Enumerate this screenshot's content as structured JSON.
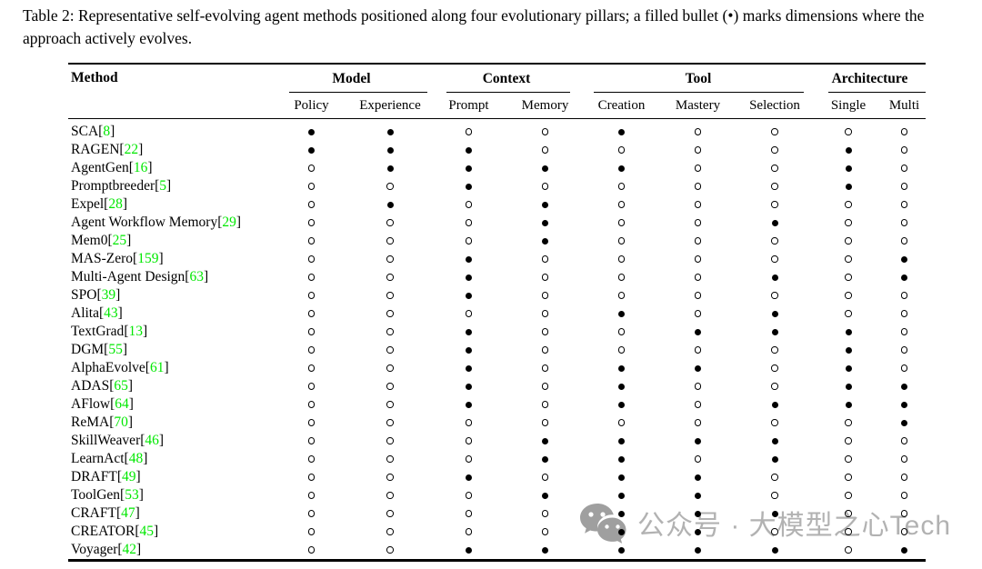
{
  "caption": "Table 2: Representative self-evolving agent methods positioned along four evolutionary pillars; a filled bullet (•) marks dimensions where the approach actively evolves.",
  "colors": {
    "citation_green": "#00e800",
    "text": "#000000",
    "background": "#ffffff",
    "watermark_gray": "#b2b2b2"
  },
  "table": {
    "method_header": "Method",
    "groups": [
      {
        "label": "Model",
        "subcolumns": [
          "Policy",
          "Experience"
        ]
      },
      {
        "label": "Context",
        "subcolumns": [
          "Prompt",
          "Memory"
        ]
      },
      {
        "label": "Tool",
        "subcolumns": [
          "Creation",
          "Mastery",
          "Selection"
        ]
      },
      {
        "label": "Architecture",
        "subcolumns": [
          "Single",
          "Multi"
        ]
      }
    ],
    "bullet_legend": {
      "filled": "●",
      "open": "○"
    },
    "rows": [
      {
        "method": "SCA",
        "cite": "8",
        "values": [
          1,
          1,
          0,
          0,
          1,
          0,
          0,
          0,
          0
        ]
      },
      {
        "method": "RAGEN",
        "cite": "22",
        "values": [
          1,
          1,
          1,
          0,
          0,
          0,
          0,
          1,
          0
        ]
      },
      {
        "method": "AgentGen",
        "cite": "16",
        "values": [
          0,
          1,
          1,
          1,
          1,
          0,
          0,
          1,
          0
        ]
      },
      {
        "method": "Promptbreeder",
        "cite": "5",
        "values": [
          0,
          0,
          1,
          0,
          0,
          0,
          0,
          1,
          0
        ]
      },
      {
        "method": "Expel",
        "cite": "28",
        "values": [
          0,
          1,
          0,
          1,
          0,
          0,
          0,
          0,
          0
        ]
      },
      {
        "method": "Agent Workflow Memory",
        "cite": "29",
        "values": [
          0,
          0,
          0,
          1,
          0,
          0,
          1,
          0,
          0
        ]
      },
      {
        "method": "Mem0",
        "cite": "25",
        "values": [
          0,
          0,
          0,
          1,
          0,
          0,
          0,
          0,
          0
        ]
      },
      {
        "method": "MAS-Zero",
        "cite": "159",
        "values": [
          0,
          0,
          1,
          0,
          0,
          0,
          0,
          0,
          1
        ]
      },
      {
        "method": "Multi-Agent Design",
        "cite": "63",
        "values": [
          0,
          0,
          1,
          0,
          0,
          0,
          1,
          0,
          1
        ]
      },
      {
        "method": "SPO",
        "cite": "39",
        "values": [
          0,
          0,
          1,
          0,
          0,
          0,
          0,
          0,
          0
        ]
      },
      {
        "method": "Alita",
        "cite": "43",
        "values": [
          0,
          0,
          0,
          0,
          1,
          0,
          1,
          0,
          0
        ]
      },
      {
        "method": "TextGrad",
        "cite": "13",
        "values": [
          0,
          0,
          1,
          0,
          0,
          1,
          1,
          1,
          0
        ]
      },
      {
        "method": "DGM",
        "cite": "55",
        "values": [
          0,
          0,
          1,
          0,
          0,
          0,
          0,
          1,
          0
        ]
      },
      {
        "method": "AlphaEvolve",
        "cite": "61",
        "values": [
          0,
          0,
          1,
          0,
          1,
          1,
          0,
          1,
          0
        ]
      },
      {
        "method": "ADAS",
        "cite": "65",
        "values": [
          0,
          0,
          1,
          0,
          1,
          0,
          0,
          1,
          1
        ]
      },
      {
        "method": "AFlow",
        "cite": "64",
        "values": [
          0,
          0,
          1,
          0,
          1,
          0,
          1,
          1,
          1
        ]
      },
      {
        "method": "ReMA",
        "cite": "70",
        "values": [
          0,
          0,
          0,
          0,
          0,
          0,
          0,
          0,
          1
        ]
      },
      {
        "method": "SkillWeaver",
        "cite": "46",
        "values": [
          0,
          0,
          0,
          1,
          1,
          1,
          1,
          0,
          0
        ]
      },
      {
        "method": "LearnAct",
        "cite": "48",
        "values": [
          0,
          0,
          0,
          1,
          1,
          0,
          1,
          0,
          0
        ]
      },
      {
        "method": "DRAFT",
        "cite": "49",
        "values": [
          0,
          0,
          1,
          0,
          1,
          1,
          0,
          0,
          0
        ]
      },
      {
        "method": "ToolGen",
        "cite": "53",
        "values": [
          0,
          0,
          0,
          1,
          1,
          1,
          0,
          0,
          0
        ]
      },
      {
        "method": "CRAFT",
        "cite": "47",
        "values": [
          0,
          0,
          0,
          0,
          1,
          1,
          1,
          0,
          0
        ]
      },
      {
        "method": "CREATOR",
        "cite": "45",
        "values": [
          0,
          0,
          0,
          0,
          1,
          1,
          0,
          0,
          0
        ]
      },
      {
        "method": "Voyager",
        "cite": "42",
        "values": [
          0,
          0,
          1,
          1,
          1,
          1,
          1,
          0,
          1
        ]
      }
    ]
  },
  "watermark": {
    "icon": "wechat-icon",
    "text": "公众号 · 大模型之心Tech"
  }
}
